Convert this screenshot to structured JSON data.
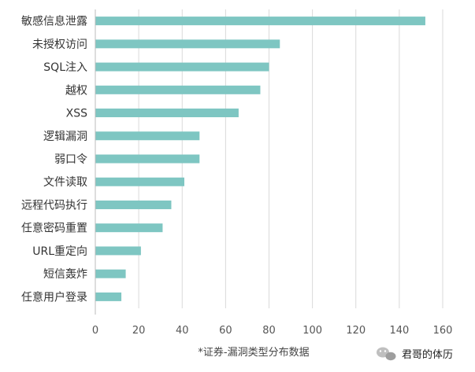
{
  "chart_data": {
    "type": "bar",
    "orientation": "horizontal",
    "categories": [
      "敏感信息泄露",
      "未授权访问",
      "SQL注入",
      "越权",
      "XSS",
      "逻辑漏洞",
      "弱口令",
      "文件读取",
      "远程代码执行",
      "任意密码重置",
      "URL重定向",
      "短信轰炸",
      "任意用户登录"
    ],
    "values": [
      152,
      85,
      80,
      76,
      66,
      48,
      48,
      41,
      35,
      31,
      21,
      14,
      12
    ],
    "xlim": [
      0,
      160
    ],
    "xticks": [
      "0",
      "20",
      "40",
      "60",
      "80",
      "100",
      "120",
      "140",
      "160"
    ],
    "title": "",
    "xlabel": "*证券-漏洞类型分布数据",
    "ylabel": "",
    "grid": "vertical",
    "legend": "none",
    "bar_color": "#7ec6c2"
  },
  "watermark": {
    "text": "君哥的体历",
    "icon": "wechat-icon"
  }
}
